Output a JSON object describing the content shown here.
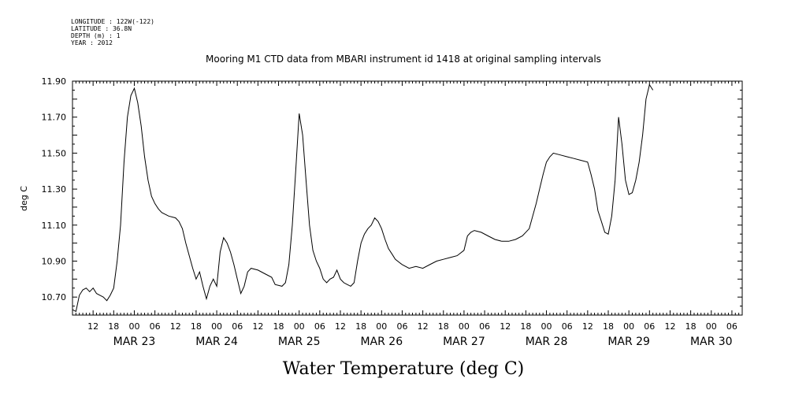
{
  "header": {
    "longitude": "LONGITUDE : 122W(-122)",
    "latitude": "LATITUDE : 36.8N",
    "depth": "DEPTH (m) : 1",
    "year": "YEAR : 2012"
  },
  "chart_data": {
    "type": "line",
    "title": "Mooring M1 CTD data from MBARI instrument id 1418 at original sampling intervals",
    "xlabel": "Water Temperature (deg C)",
    "ylabel": "deg C",
    "ylim": [
      10.6,
      11.9
    ],
    "xlim": [
      "2012-03-22T06:00",
      "2012-03-30T09:00"
    ],
    "yticks": [
      "10.70",
      "10.90",
      "11.10",
      "11.30",
      "11.50",
      "11.70",
      "11.90"
    ],
    "hour_ticks": [
      [
        "2012-03-22T12:00",
        "12"
      ],
      [
        "2012-03-22T18:00",
        "18"
      ],
      [
        "2012-03-23T00:00",
        "00"
      ],
      [
        "2012-03-23T06:00",
        "06"
      ],
      [
        "2012-03-23T12:00",
        "12"
      ],
      [
        "2012-03-23T18:00",
        "18"
      ],
      [
        "2012-03-24T00:00",
        "00"
      ],
      [
        "2012-03-24T06:00",
        "06"
      ],
      [
        "2012-03-24T12:00",
        "12"
      ],
      [
        "2012-03-24T18:00",
        "18"
      ],
      [
        "2012-03-25T00:00",
        "00"
      ],
      [
        "2012-03-25T06:00",
        "06"
      ],
      [
        "2012-03-25T12:00",
        "12"
      ],
      [
        "2012-03-25T18:00",
        "18"
      ],
      [
        "2012-03-26T00:00",
        "00"
      ],
      [
        "2012-03-26T06:00",
        "06"
      ],
      [
        "2012-03-26T12:00",
        "12"
      ],
      [
        "2012-03-26T18:00",
        "18"
      ],
      [
        "2012-03-27T00:00",
        "00"
      ],
      [
        "2012-03-27T06:00",
        "06"
      ],
      [
        "2012-03-27T12:00",
        "12"
      ],
      [
        "2012-03-27T18:00",
        "18"
      ],
      [
        "2012-03-28T00:00",
        "00"
      ],
      [
        "2012-03-28T06:00",
        "06"
      ],
      [
        "2012-03-28T12:00",
        "12"
      ],
      [
        "2012-03-28T18:00",
        "18"
      ],
      [
        "2012-03-29T00:00",
        "00"
      ],
      [
        "2012-03-29T06:00",
        "06"
      ],
      [
        "2012-03-29T12:00",
        "12"
      ],
      [
        "2012-03-29T18:00",
        "18"
      ],
      [
        "2012-03-30T00:00",
        "00"
      ],
      [
        "2012-03-30T06:00",
        "06"
      ]
    ],
    "day_labels": [
      [
        "2012-03-23T00:00",
        "MAR 23"
      ],
      [
        "2012-03-24T00:00",
        "MAR 24"
      ],
      [
        "2012-03-25T00:00",
        "MAR 25"
      ],
      [
        "2012-03-26T00:00",
        "MAR 26"
      ],
      [
        "2012-03-27T00:00",
        "MAR 27"
      ],
      [
        "2012-03-28T00:00",
        "MAR 28"
      ],
      [
        "2012-03-29T00:00",
        "MAR 29"
      ],
      [
        "2012-03-30T00:00",
        "MAR 30"
      ]
    ],
    "series": [
      {
        "color": "#000000",
        "points": [
          [
            "2012-03-22T06:00",
            10.63
          ],
          [
            "2012-03-22T07:00",
            10.62
          ],
          [
            "2012-03-22T08:00",
            10.71
          ],
          [
            "2012-03-22T09:00",
            10.74
          ],
          [
            "2012-03-22T10:00",
            10.75
          ],
          [
            "2012-03-22T11:00",
            10.73
          ],
          [
            "2012-03-22T12:00",
            10.75
          ],
          [
            "2012-03-22T13:00",
            10.72
          ],
          [
            "2012-03-22T14:00",
            10.71
          ],
          [
            "2012-03-22T15:00",
            10.7
          ],
          [
            "2012-03-22T16:00",
            10.68
          ],
          [
            "2012-03-22T17:00",
            10.71
          ],
          [
            "2012-03-22T18:00",
            10.75
          ],
          [
            "2012-03-22T19:00",
            10.9
          ],
          [
            "2012-03-22T20:00",
            11.1
          ],
          [
            "2012-03-22T21:00",
            11.45
          ],
          [
            "2012-03-22T22:00",
            11.7
          ],
          [
            "2012-03-22T23:00",
            11.82
          ],
          [
            "2012-03-23T00:00",
            11.86
          ],
          [
            "2012-03-23T01:00",
            11.78
          ],
          [
            "2012-03-23T02:00",
            11.65
          ],
          [
            "2012-03-23T03:00",
            11.48
          ],
          [
            "2012-03-23T04:00",
            11.35
          ],
          [
            "2012-03-23T05:00",
            11.26
          ],
          [
            "2012-03-23T06:00",
            11.22
          ],
          [
            "2012-03-23T07:00",
            11.19
          ],
          [
            "2012-03-23T08:00",
            11.17
          ],
          [
            "2012-03-23T10:00",
            11.15
          ],
          [
            "2012-03-23T12:00",
            11.14
          ],
          [
            "2012-03-23T13:00",
            11.12
          ],
          [
            "2012-03-23T14:00",
            11.08
          ],
          [
            "2012-03-23T15:00",
            11.0
          ],
          [
            "2012-03-23T16:00",
            10.93
          ],
          [
            "2012-03-23T17:00",
            10.86
          ],
          [
            "2012-03-23T18:00",
            10.8
          ],
          [
            "2012-03-23T19:00",
            10.84
          ],
          [
            "2012-03-23T20:00",
            10.76
          ],
          [
            "2012-03-23T21:00",
            10.69
          ],
          [
            "2012-03-23T22:00",
            10.76
          ],
          [
            "2012-03-23T23:00",
            10.8
          ],
          [
            "2012-03-24T00:00",
            10.76
          ],
          [
            "2012-03-24T01:00",
            10.95
          ],
          [
            "2012-03-24T02:00",
            11.03
          ],
          [
            "2012-03-24T03:00",
            11.0
          ],
          [
            "2012-03-24T04:00",
            10.95
          ],
          [
            "2012-03-24T05:00",
            10.88
          ],
          [
            "2012-03-24T06:00",
            10.8
          ],
          [
            "2012-03-24T07:00",
            10.72
          ],
          [
            "2012-03-24T08:00",
            10.76
          ],
          [
            "2012-03-24T09:00",
            10.84
          ],
          [
            "2012-03-24T10:00",
            10.86
          ],
          [
            "2012-03-24T12:00",
            10.85
          ],
          [
            "2012-03-24T14:00",
            10.83
          ],
          [
            "2012-03-24T16:00",
            10.81
          ],
          [
            "2012-03-24T17:00",
            10.77
          ],
          [
            "2012-03-24T19:00",
            10.76
          ],
          [
            "2012-03-24T20:00",
            10.78
          ],
          [
            "2012-03-24T21:00",
            10.88
          ],
          [
            "2012-03-24T22:00",
            11.1
          ],
          [
            "2012-03-24T23:00",
            11.4
          ],
          [
            "2012-03-25T00:00",
            11.72
          ],
          [
            "2012-03-25T01:00",
            11.6
          ],
          [
            "2012-03-25T02:00",
            11.35
          ],
          [
            "2012-03-25T03:00",
            11.1
          ],
          [
            "2012-03-25T04:00",
            10.96
          ],
          [
            "2012-03-25T05:00",
            10.9
          ],
          [
            "2012-03-25T06:00",
            10.86
          ],
          [
            "2012-03-25T07:00",
            10.8
          ],
          [
            "2012-03-25T08:00",
            10.78
          ],
          [
            "2012-03-25T09:00",
            10.8
          ],
          [
            "2012-03-25T10:00",
            10.81
          ],
          [
            "2012-03-25T11:00",
            10.85
          ],
          [
            "2012-03-25T12:00",
            10.8
          ],
          [
            "2012-03-25T13:00",
            10.78
          ],
          [
            "2012-03-25T14:00",
            10.77
          ],
          [
            "2012-03-25T15:00",
            10.76
          ],
          [
            "2012-03-25T16:00",
            10.78
          ],
          [
            "2012-03-25T17:00",
            10.9
          ],
          [
            "2012-03-25T18:00",
            11.0
          ],
          [
            "2012-03-25T19:00",
            11.05
          ],
          [
            "2012-03-25T20:00",
            11.08
          ],
          [
            "2012-03-25T21:00",
            11.1
          ],
          [
            "2012-03-25T22:00",
            11.14
          ],
          [
            "2012-03-25T23:00",
            11.12
          ],
          [
            "2012-03-26T00:00",
            11.08
          ],
          [
            "2012-03-26T01:00",
            11.02
          ],
          [
            "2012-03-26T02:00",
            10.97
          ],
          [
            "2012-03-26T03:00",
            10.94
          ],
          [
            "2012-03-26T04:00",
            10.91
          ],
          [
            "2012-03-26T06:00",
            10.88
          ],
          [
            "2012-03-26T08:00",
            10.86
          ],
          [
            "2012-03-26T10:00",
            10.87
          ],
          [
            "2012-03-26T12:00",
            10.86
          ],
          [
            "2012-03-26T14:00",
            10.88
          ],
          [
            "2012-03-26T16:00",
            10.9
          ],
          [
            "2012-03-26T18:00",
            10.91
          ],
          [
            "2012-03-26T20:00",
            10.92
          ],
          [
            "2012-03-26T22:00",
            10.93
          ],
          [
            "2012-03-27T00:00",
            10.96
          ],
          [
            "2012-03-27T01:00",
            11.04
          ],
          [
            "2012-03-27T02:00",
            11.06
          ],
          [
            "2012-03-27T03:00",
            11.07
          ],
          [
            "2012-03-27T05:00",
            11.06
          ],
          [
            "2012-03-27T07:00",
            11.04
          ],
          [
            "2012-03-27T09:00",
            11.02
          ],
          [
            "2012-03-27T11:00",
            11.01
          ],
          [
            "2012-03-27T13:00",
            11.01
          ],
          [
            "2012-03-27T15:00",
            11.02
          ],
          [
            "2012-03-27T17:00",
            11.04
          ],
          [
            "2012-03-27T19:00",
            11.08
          ],
          [
            "2012-03-27T20:00",
            11.15
          ],
          [
            "2012-03-27T21:00",
            11.22
          ],
          [
            "2012-03-27T22:00",
            11.3
          ],
          [
            "2012-03-27T23:00",
            11.38
          ],
          [
            "2012-03-28T00:00",
            11.45
          ],
          [
            "2012-03-28T01:00",
            11.48
          ],
          [
            "2012-03-28T02:00",
            11.5
          ],
          [
            "2012-03-28T04:00",
            11.49
          ],
          [
            "2012-03-28T06:00",
            11.48
          ],
          [
            "2012-03-28T08:00",
            11.47
          ],
          [
            "2012-03-28T10:00",
            11.46
          ],
          [
            "2012-03-28T12:00",
            11.45
          ],
          [
            "2012-03-28T13:00",
            11.38
          ],
          [
            "2012-03-28T14:00",
            11.3
          ],
          [
            "2012-03-28T15:00",
            11.18
          ],
          [
            "2012-03-28T16:00",
            11.12
          ],
          [
            "2012-03-28T17:00",
            11.06
          ],
          [
            "2012-03-28T18:00",
            11.05
          ],
          [
            "2012-03-28T19:00",
            11.15
          ],
          [
            "2012-03-28T20:00",
            11.35
          ],
          [
            "2012-03-28T21:00",
            11.7
          ],
          [
            "2012-03-28T22:00",
            11.55
          ],
          [
            "2012-03-28T23:00",
            11.35
          ],
          [
            "2012-03-29T00:00",
            11.27
          ],
          [
            "2012-03-29T01:00",
            11.28
          ],
          [
            "2012-03-29T02:00",
            11.35
          ],
          [
            "2012-03-29T03:00",
            11.45
          ],
          [
            "2012-03-29T04:00",
            11.6
          ],
          [
            "2012-03-29T05:00",
            11.8
          ],
          [
            "2012-03-29T06:00",
            11.88
          ],
          [
            "2012-03-29T07:00",
            11.85
          ]
        ]
      }
    ]
  }
}
